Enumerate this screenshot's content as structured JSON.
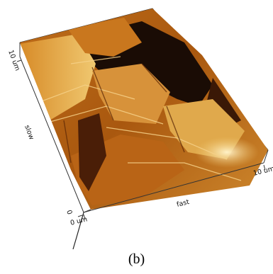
{
  "figure": {
    "caption": "(b)",
    "colors": {
      "dark": "#1a0c05",
      "mid": "#a9580f",
      "light": "#f0c870",
      "highlight": "#fff2c8",
      "frame": "#333333"
    },
    "axes": {
      "slow_label": "slow",
      "fast_label": "fast",
      "slow_top": "10 um",
      "slow_bottom": "0",
      "fast_left": "0 um",
      "fast_right": "10 um"
    }
  }
}
